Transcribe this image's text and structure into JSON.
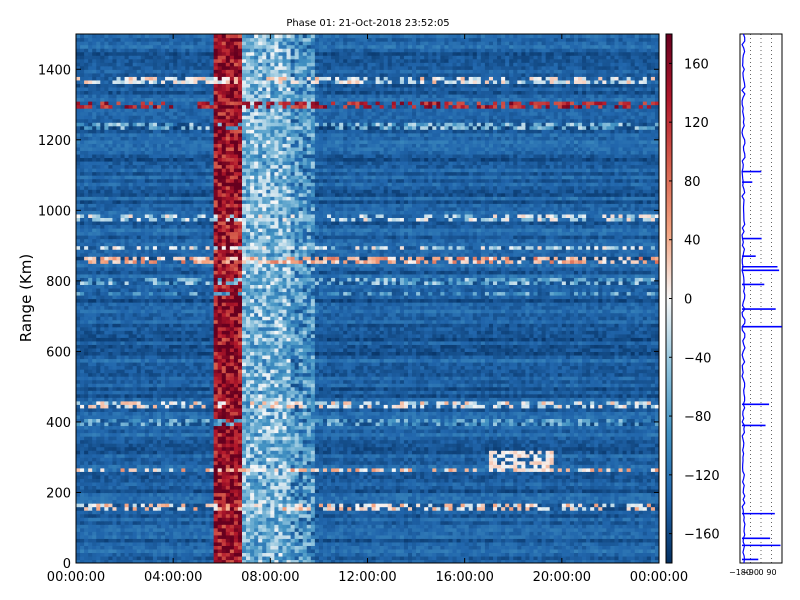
{
  "chart_data": {
    "type": "heatmap",
    "title": "Phase 01: 21-Oct-2018 23:52:05",
    "ylabel": "Range (Km)",
    "xlabel": "",
    "x_ticks": [
      "00:00:00",
      "04:00:00",
      "08:00:00",
      "12:00:00",
      "16:00:00",
      "20:00:00",
      "00:00:00"
    ],
    "x_range_hours": [
      0,
      24
    ],
    "y_ticks": [
      0,
      200,
      400,
      600,
      800,
      1000,
      1200,
      1400
    ],
    "y_range": [
      0,
      1500
    ],
    "colorbar": {
      "ticks": [
        160,
        120,
        80,
        40,
        0,
        -40,
        -80,
        -120,
        -160
      ],
      "range": [
        -180,
        180
      ],
      "colormap": "RdBu_r",
      "colors": [
        "#053061",
        "#2166ac",
        "#4393c3",
        "#92c5de",
        "#f7f7f7",
        "#f4a582",
        "#d6604d",
        "#b2182b",
        "#67001f"
      ]
    },
    "background_value": -140,
    "features": [
      {
        "kind": "band",
        "x_hours": [
          5.6,
          6.9
        ],
        "y": [
          0,
          1500
        ],
        "value": 150
      },
      {
        "kind": "band",
        "x_hours": [
          6.9,
          8.8
        ],
        "y": [
          0,
          1500
        ],
        "value": -60
      },
      {
        "kind": "band",
        "x_hours": [
          8.8,
          9.8
        ],
        "y": [
          0,
          1500
        ],
        "value": -95
      },
      {
        "kind": "hline",
        "range_km": 1370,
        "value": 0
      },
      {
        "kind": "hline",
        "range_km": 1300,
        "value": 130
      },
      {
        "kind": "hline",
        "range_km": 1240,
        "value": -60
      },
      {
        "kind": "hline",
        "range_km": 980,
        "value": -20
      },
      {
        "kind": "hline",
        "range_km": 895,
        "value": -20
      },
      {
        "kind": "hline",
        "range_km": 860,
        "value": 40
      },
      {
        "kind": "hline",
        "range_km": 800,
        "value": -60
      },
      {
        "kind": "hline",
        "range_km": 765,
        "value": -80
      },
      {
        "kind": "hline",
        "range_km": 450,
        "value": 0
      },
      {
        "kind": "hline",
        "range_km": 400,
        "value": -80
      },
      {
        "kind": "hline",
        "range_km": 265,
        "value": 20
      },
      {
        "kind": "hline",
        "range_km": 160,
        "value": 10
      },
      {
        "kind": "patch",
        "x_hours": [
          17.0,
          19.7
        ],
        "y": [
          260,
          320
        ],
        "value": 10
      }
    ],
    "side_profile": {
      "x_ticks": [
        -180,
        -90,
        0,
        90
      ],
      "x_range": [
        -180,
        180
      ],
      "spikes_km": [
        1110,
        1080,
        920,
        870,
        840,
        830,
        790,
        720,
        670,
        450,
        390,
        140,
        70,
        50,
        10
      ],
      "line_color": "#0000ff"
    }
  }
}
